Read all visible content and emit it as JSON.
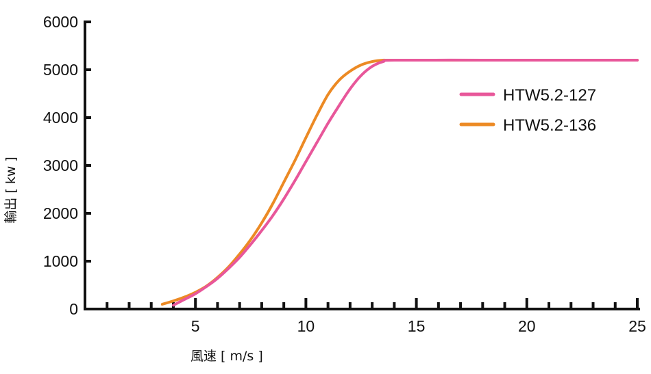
{
  "chart_data": {
    "type": "line",
    "xlabel": "風速 [ m/s ]",
    "ylabel": "輸出 [ kw ]",
    "xlim": [
      0,
      25
    ],
    "ylim": [
      0,
      6000
    ],
    "x_ticks": [
      5,
      10,
      15,
      20,
      25
    ],
    "y_ticks": [
      0,
      1000,
      2000,
      3000,
      4000,
      5000,
      6000
    ],
    "x_minor_step": 1,
    "grid": false,
    "legend_position": "right",
    "series": [
      {
        "name": "HTW5.2-127",
        "color": "#e8579a",
        "points": [
          [
            4.0,
            80
          ],
          [
            4.5,
            200
          ],
          [
            5.0,
            320
          ],
          [
            5.5,
            470
          ],
          [
            6.0,
            640
          ],
          [
            6.5,
            850
          ],
          [
            7.0,
            1080
          ],
          [
            7.5,
            1350
          ],
          [
            8.0,
            1640
          ],
          [
            8.5,
            1950
          ],
          [
            9.0,
            2300
          ],
          [
            9.5,
            2680
          ],
          [
            10.0,
            3080
          ],
          [
            10.5,
            3480
          ],
          [
            11.0,
            3880
          ],
          [
            11.5,
            4250
          ],
          [
            12.0,
            4600
          ],
          [
            12.5,
            4880
          ],
          [
            13.0,
            5070
          ],
          [
            13.5,
            5170
          ],
          [
            14.0,
            5200
          ],
          [
            18.0,
            5200
          ],
          [
            22.0,
            5200
          ],
          [
            25.0,
            5200
          ]
        ]
      },
      {
        "name": "HTW5.2-136",
        "color": "#ec8a24",
        "points": [
          [
            3.5,
            100
          ],
          [
            4.0,
            170
          ],
          [
            4.5,
            250
          ],
          [
            5.0,
            350
          ],
          [
            5.5,
            480
          ],
          [
            6.0,
            660
          ],
          [
            6.5,
            880
          ],
          [
            7.0,
            1150
          ],
          [
            7.5,
            1450
          ],
          [
            8.0,
            1800
          ],
          [
            8.5,
            2200
          ],
          [
            9.0,
            2650
          ],
          [
            9.5,
            3100
          ],
          [
            10.0,
            3580
          ],
          [
            10.5,
            4050
          ],
          [
            11.0,
            4480
          ],
          [
            11.5,
            4780
          ],
          [
            12.0,
            4970
          ],
          [
            12.5,
            5100
          ],
          [
            13.0,
            5170
          ],
          [
            13.5,
            5200
          ],
          [
            14.0,
            5200
          ],
          [
            18.0,
            5200
          ],
          [
            22.0,
            5200
          ],
          [
            25.0,
            5200
          ]
        ]
      }
    ]
  }
}
